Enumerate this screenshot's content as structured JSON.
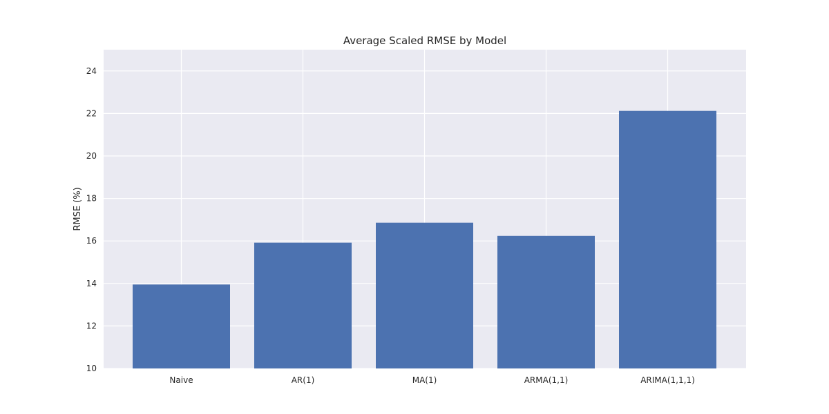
{
  "chart_data": {
    "type": "bar",
    "title": "Average Scaled RMSE by Model",
    "xlabel": "",
    "ylabel": "RMSE (%)",
    "categories": [
      "Naive",
      "AR(1)",
      "MA(1)",
      "ARMA(1,1)",
      "ARIMA(1,1,1)"
    ],
    "values": [
      13.95,
      15.92,
      16.86,
      16.24,
      22.12
    ],
    "ylim": [
      10,
      25
    ],
    "yticks": [
      "10",
      "12",
      "14",
      "16",
      "18",
      "20",
      "22",
      "24"
    ],
    "grid": true,
    "style": "seaborn",
    "colors": {
      "bar": "#4c72b0",
      "plot_background": "#eaeaf2",
      "grid": "#ffffff",
      "text": "#262626"
    }
  }
}
